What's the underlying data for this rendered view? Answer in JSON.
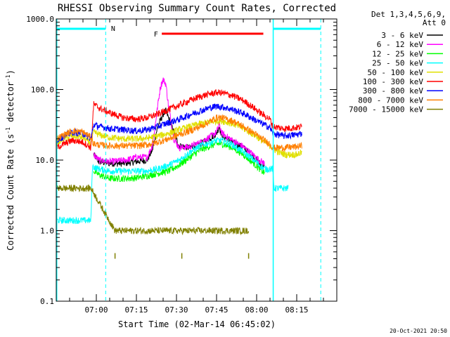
{
  "chart_data": {
    "type": "line",
    "title": "RHESSI Observing Summary Count Rates, Corrected",
    "xlabel": "Start Time (02-Mar-14 06:45:02)",
    "ylabel_main": "Corrected Count Rate (s",
    "ylabel_sup1": "-1",
    "ylabel_mid": " detector",
    "ylabel_sup2": "-1",
    "ylabel_end": ")",
    "yscale": "log",
    "ylim": [
      0.1,
      1000
    ],
    "xlim_minutes": [
      0,
      105
    ],
    "yticks": [
      {
        "value": 1000,
        "label": "1000.0"
      },
      {
        "value": 100,
        "label": "100.0"
      },
      {
        "value": 10,
        "label": "10.0"
      },
      {
        "value": 1,
        "label": "1.0"
      },
      {
        "value": 0.1,
        "label": "0.1"
      }
    ],
    "xticks": [
      {
        "minute": 15,
        "label": "07:00"
      },
      {
        "minute": 30,
        "label": "07:15"
      },
      {
        "minute": 45,
        "label": "07:30"
      },
      {
        "minute": 60,
        "label": "07:45"
      },
      {
        "minute": 75,
        "label": "08:00"
      },
      {
        "minute": 90,
        "label": "08:15"
      }
    ],
    "legend": {
      "title_line1": "Det 1,3,4,5,6,9,",
      "title_line2": "Att 0",
      "placement": "right"
    },
    "series": [
      {
        "name": "3 - 6 keV",
        "color": "#000000",
        "points": [
          [
            14,
            12
          ],
          [
            16,
            9.5
          ],
          [
            20,
            9
          ],
          [
            25,
            9
          ],
          [
            30,
            9.5
          ],
          [
            34,
            10
          ],
          [
            36,
            14
          ],
          [
            38,
            30
          ],
          [
            40,
            45
          ],
          [
            41,
            50
          ],
          [
            42,
            40
          ],
          [
            44,
            25
          ],
          [
            46,
            16
          ],
          [
            50,
            15
          ],
          [
            54,
            17
          ],
          [
            58,
            21
          ],
          [
            60,
            24
          ],
          [
            61,
            30
          ],
          [
            62,
            22
          ],
          [
            66,
            18
          ],
          [
            70,
            15
          ],
          [
            73,
            12
          ],
          [
            76,
            9
          ],
          [
            78,
            8
          ]
        ]
      },
      {
        "name": "6 - 12 keV",
        "color": "#ff00ff",
        "points": [
          [
            14,
            12
          ],
          [
            16,
            10
          ],
          [
            20,
            9.5
          ],
          [
            26,
            10
          ],
          [
            30,
            11
          ],
          [
            34,
            11
          ],
          [
            36,
            16
          ],
          [
            38,
            60
          ],
          [
            39,
            110
          ],
          [
            40,
            140
          ],
          [
            41,
            120
          ],
          [
            42,
            60
          ],
          [
            44,
            20
          ],
          [
            46,
            15
          ],
          [
            50,
            15.5
          ],
          [
            54,
            18
          ],
          [
            58,
            22
          ],
          [
            60,
            25
          ],
          [
            61,
            32
          ],
          [
            62,
            24
          ],
          [
            66,
            19
          ],
          [
            70,
            15.5
          ],
          [
            73,
            12.5
          ],
          [
            76,
            10
          ],
          [
            78,
            9
          ]
        ]
      },
      {
        "name": "12 - 25 keV",
        "color": "#00ff00",
        "points": [
          [
            14,
            7
          ],
          [
            16,
            6.2
          ],
          [
            20,
            5.5
          ],
          [
            25,
            5.5
          ],
          [
            30,
            5.6
          ],
          [
            34,
            6
          ],
          [
            38,
            6.5
          ],
          [
            42,
            7
          ],
          [
            46,
            8.5
          ],
          [
            50,
            11
          ],
          [
            54,
            14
          ],
          [
            58,
            16
          ],
          [
            60,
            17
          ],
          [
            62,
            17
          ],
          [
            66,
            15
          ],
          [
            70,
            12
          ],
          [
            74,
            9
          ],
          [
            77,
            7
          ],
          [
            78,
            6.5
          ]
        ]
      },
      {
        "name": "25 - 50 keV",
        "color": "#00ffff",
        "points": [
          [
            0,
            1.4
          ],
          [
            13,
            1.4
          ],
          [
            13.5,
            8
          ],
          [
            14,
            8
          ],
          [
            16,
            7.5
          ],
          [
            20,
            7
          ],
          [
            25,
            7
          ],
          [
            30,
            7
          ],
          [
            34,
            7
          ],
          [
            38,
            7.5
          ],
          [
            42,
            8.5
          ],
          [
            46,
            10
          ],
          [
            50,
            13
          ],
          [
            54,
            16
          ],
          [
            58,
            18
          ],
          [
            60,
            19
          ],
          [
            62,
            19
          ],
          [
            66,
            16.5
          ],
          [
            70,
            13
          ],
          [
            74,
            10
          ],
          [
            77,
            8
          ],
          [
            78,
            7.5
          ],
          [
            81,
            7.5
          ],
          [
            81.5,
            4
          ],
          [
            87,
            4
          ],
          [
            87,
            3
          ]
        ]
      },
      {
        "name": "50 - 100 keV",
        "color": "#e0e000",
        "points": [
          [
            0,
            18
          ],
          [
            3,
            20
          ],
          [
            6,
            22
          ],
          [
            10,
            21
          ],
          [
            13,
            17
          ],
          [
            14,
            25
          ],
          [
            16,
            23
          ],
          [
            20,
            21
          ],
          [
            25,
            20
          ],
          [
            30,
            20
          ],
          [
            34,
            20.5
          ],
          [
            38,
            22
          ],
          [
            42,
            24
          ],
          [
            46,
            27
          ],
          [
            50,
            30
          ],
          [
            54,
            33
          ],
          [
            58,
            35
          ],
          [
            60,
            36
          ],
          [
            62,
            36
          ],
          [
            66,
            33
          ],
          [
            70,
            28
          ],
          [
            74,
            23
          ],
          [
            77,
            19
          ],
          [
            80,
            16
          ],
          [
            83,
            13
          ],
          [
            86,
            12
          ],
          [
            90,
            12
          ],
          [
            92,
            13
          ]
        ]
      },
      {
        "name": "100 - 300 keV",
        "color": "#ff0000",
        "points": [
          [
            0,
            15
          ],
          [
            3,
            17
          ],
          [
            6,
            19
          ],
          [
            10,
            18
          ],
          [
            13,
            15
          ],
          [
            14,
            62
          ],
          [
            16,
            55
          ],
          [
            20,
            47
          ],
          [
            25,
            40
          ],
          [
            30,
            38
          ],
          [
            34,
            40
          ],
          [
            38,
            45
          ],
          [
            42,
            52
          ],
          [
            46,
            60
          ],
          [
            50,
            70
          ],
          [
            54,
            80
          ],
          [
            58,
            88
          ],
          [
            60,
            91
          ],
          [
            62,
            90
          ],
          [
            66,
            82
          ],
          [
            70,
            70
          ],
          [
            74,
            55
          ],
          [
            77,
            45
          ],
          [
            80,
            38
          ],
          [
            81,
            30
          ],
          [
            85,
            28
          ],
          [
            90,
            29
          ],
          [
            92,
            30
          ]
        ]
      },
      {
        "name": "300 - 800 keV",
        "color": "#0000ff",
        "points": [
          [
            0,
            19
          ],
          [
            3,
            22
          ],
          [
            6,
            25
          ],
          [
            10,
            24
          ],
          [
            13,
            20
          ],
          [
            14,
            32
          ],
          [
            16,
            30
          ],
          [
            20,
            28
          ],
          [
            25,
            27
          ],
          [
            30,
            26
          ],
          [
            34,
            27
          ],
          [
            38,
            30
          ],
          [
            42,
            34
          ],
          [
            46,
            38
          ],
          [
            50,
            44
          ],
          [
            54,
            50
          ],
          [
            58,
            56
          ],
          [
            60,
            58
          ],
          [
            62,
            57
          ],
          [
            66,
            52
          ],
          [
            70,
            46
          ],
          [
            74,
            38
          ],
          [
            77,
            33
          ],
          [
            80,
            29
          ],
          [
            81,
            24
          ],
          [
            85,
            22
          ],
          [
            90,
            23
          ],
          [
            92,
            24
          ]
        ]
      },
      {
        "name": "800 - 7000 keV",
        "color": "#ff7f00",
        "points": [
          [
            0,
            20
          ],
          [
            3,
            23
          ],
          [
            6,
            26
          ],
          [
            10,
            25
          ],
          [
            13,
            21
          ],
          [
            14,
            17
          ],
          [
            16,
            16.5
          ],
          [
            20,
            16
          ],
          [
            25,
            16
          ],
          [
            30,
            16
          ],
          [
            34,
            16.5
          ],
          [
            38,
            18
          ],
          [
            42,
            20
          ],
          [
            46,
            23
          ],
          [
            50,
            26
          ],
          [
            54,
            30
          ],
          [
            58,
            36
          ],
          [
            60,
            40
          ],
          [
            62,
            40
          ],
          [
            66,
            36
          ],
          [
            70,
            30
          ],
          [
            74,
            24
          ],
          [
            77,
            20
          ],
          [
            80,
            17
          ],
          [
            81,
            15
          ],
          [
            85,
            15
          ],
          [
            90,
            15.5
          ],
          [
            92,
            16
          ]
        ]
      },
      {
        "name": "7000 - 15000 keV",
        "color": "#808000",
        "points": [
          [
            0,
            4
          ],
          [
            13,
            4
          ],
          [
            22,
            1.0
          ],
          [
            34,
            1.0
          ],
          [
            40,
            1.0
          ],
          [
            55,
            1.0
          ],
          [
            62,
            1.0
          ],
          [
            72,
            1.0
          ]
        ]
      }
    ],
    "annotations": {
      "night_label": "N",
      "flare_label": "F"
    }
  },
  "footer": {
    "timestamp": "20-Oct-2021 20:50"
  }
}
